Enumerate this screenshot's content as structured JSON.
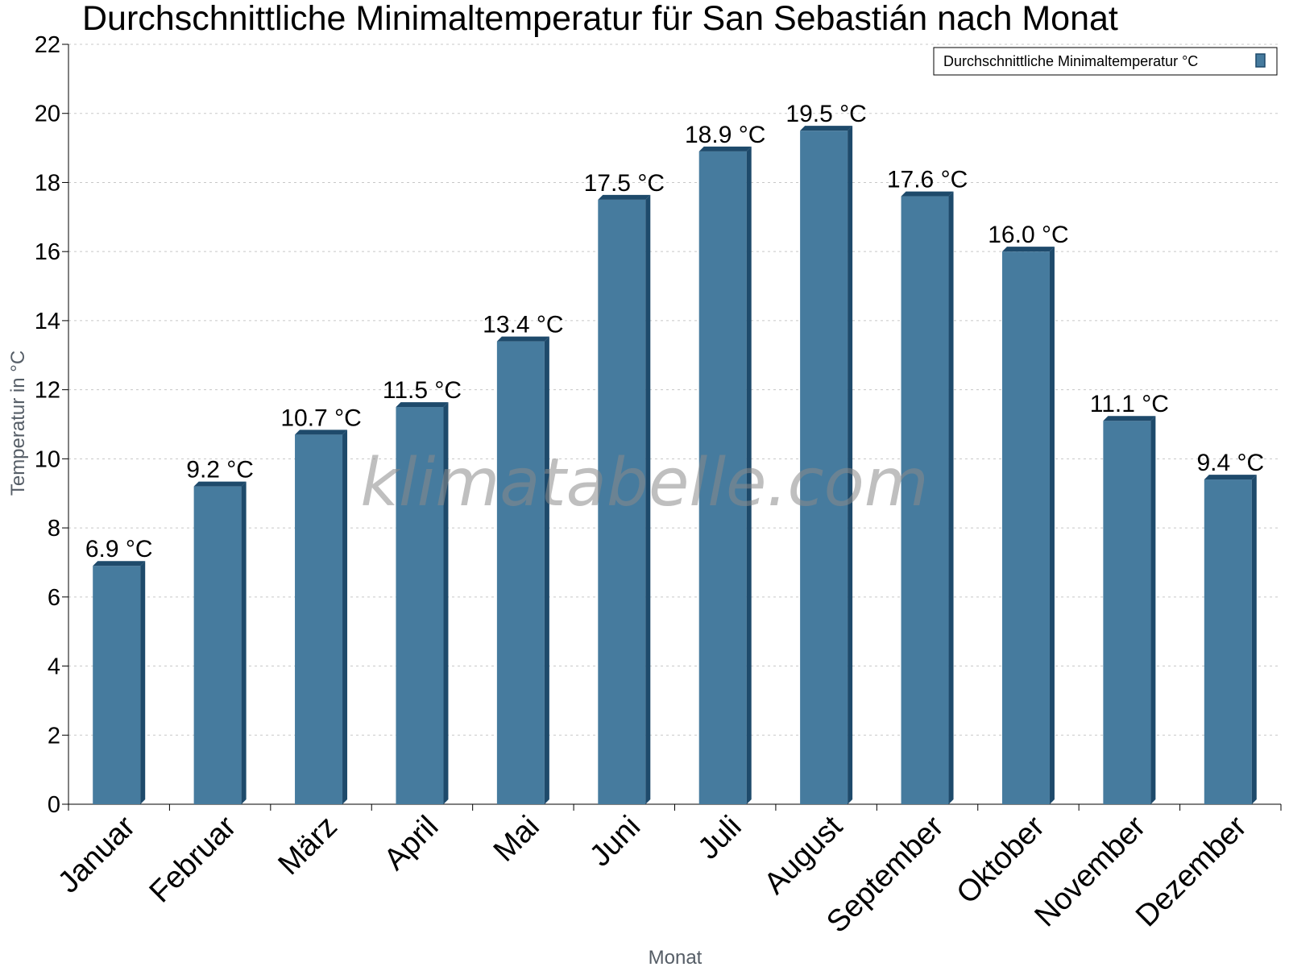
{
  "chart_data": {
    "type": "bar",
    "title": "Durchschnittliche Minimaltemperatur für San Sebastián nach Monat",
    "xlabel": "Monat",
    "ylabel": "Temperatur in °C",
    "categories": [
      "Januar",
      "Februar",
      "März",
      "April",
      "Mai",
      "Juni",
      "Juli",
      "August",
      "September",
      "Oktober",
      "November",
      "Dezember"
    ],
    "series": [
      {
        "name": "Durchschnittliche Minimaltemperatur °C",
        "values": [
          6.9,
          9.2,
          10.7,
          11.5,
          13.4,
          17.5,
          18.9,
          19.5,
          17.6,
          16.0,
          11.1,
          9.4
        ],
        "labels": [
          "6.9 °C",
          "9.2 °C",
          "10.7 °C",
          "11.5 °C",
          "13.4 °C",
          "17.5 °C",
          "18.9 °C",
          "19.5 °C",
          "17.6 °C",
          "16.0 °C",
          "11.1 °C",
          "9.4 °C"
        ]
      }
    ],
    "ylim": [
      0,
      22
    ],
    "yticks": [
      0,
      2,
      4,
      6,
      8,
      10,
      12,
      14,
      16,
      18,
      20,
      22
    ],
    "grid": true,
    "legend_position": "top-right",
    "colors": {
      "bar": "#467b9e",
      "bar_side": "#1e4a6b",
      "grid": "#c8c8c8"
    }
  },
  "watermark": "klimatabelle.com"
}
